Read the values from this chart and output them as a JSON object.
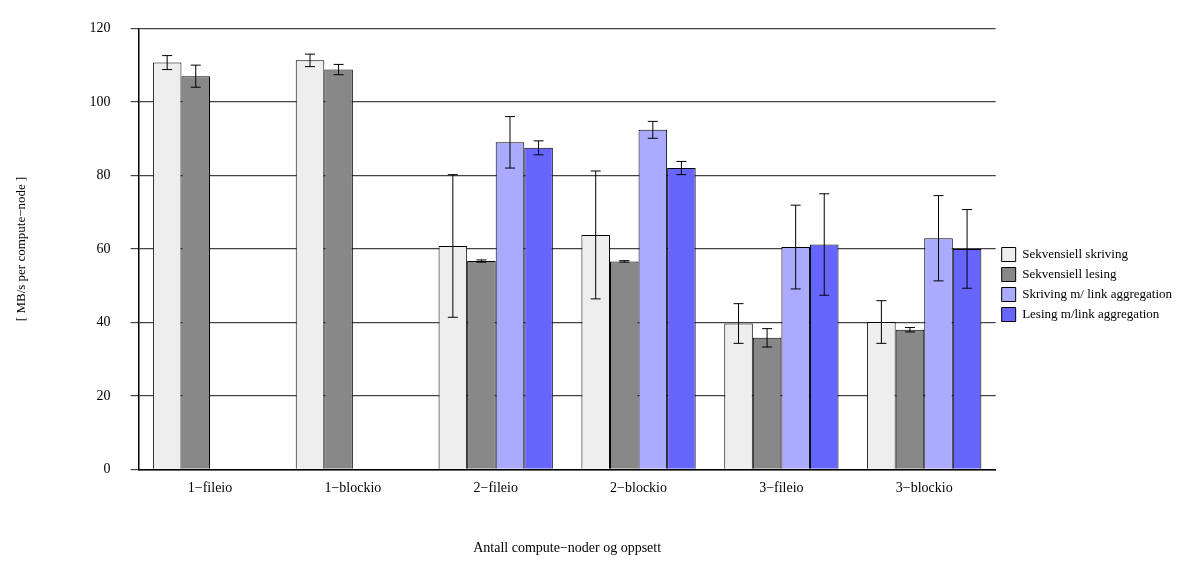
{
  "chart_data": {
    "type": "bar",
    "xlabel": "Antall compute−noder og oppsett",
    "ylabel": "[ MB/s per compute−node ]",
    "categories": [
      "1−fileio",
      "1−blockio",
      "2−fileio",
      "2−blockio",
      "3−fileio",
      "3−blockio"
    ],
    "series": [
      {
        "name": "Sekvensiell skriving",
        "color": "#eeeeee",
        "values": [
          110.7,
          111.3,
          60.8,
          63.8,
          39.7,
          40.1
        ],
        "errors": [
          1.9,
          1.7,
          19.4,
          17.4,
          5.4,
          5.8
        ]
      },
      {
        "name": "Sekvensiell lesing",
        "color": "#888888",
        "values": [
          107,
          108.8,
          56.7,
          56.6,
          35.8,
          38
        ],
        "errors": [
          3,
          1.4,
          0.3,
          0.2,
          2.5,
          0.6
        ]
      },
      {
        "name": "Skriving m/ link aggregation",
        "color": "#aaaaff",
        "values": [
          null,
          null,
          89,
          92.4,
          60.5,
          62.9
        ],
        "errors": [
          null,
          null,
          7,
          2.3,
          11.4,
          11.6
        ]
      },
      {
        "name": "Lesing m/link aggregation",
        "color": "#6666ff",
        "values": [
          null,
          null,
          87.5,
          82,
          61.2,
          60
        ],
        "errors": [
          null,
          null,
          1.9,
          1.8,
          13.8,
          10.7
        ]
      }
    ],
    "ylim": [
      0,
      120
    ],
    "yticks": [
      0,
      20,
      40,
      60,
      80,
      100,
      120
    ],
    "grid": "y",
    "legend": "right"
  }
}
